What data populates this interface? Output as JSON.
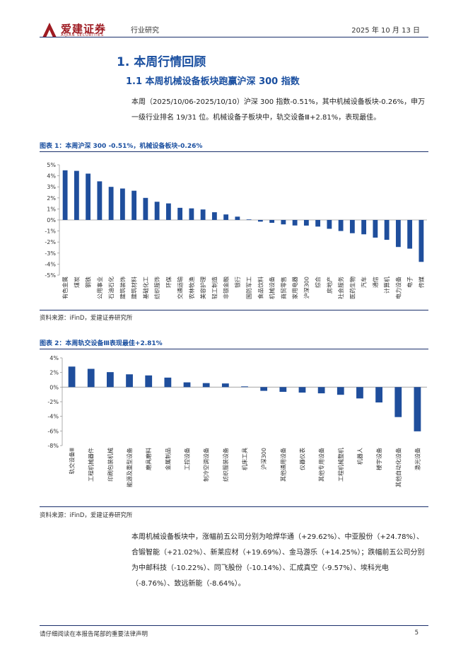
{
  "header": {
    "logo_cn": "爱建证券",
    "logo_en": "AIJIAN SECURITIES",
    "category": "行业研究",
    "date": "2025 年 10 月 13 日"
  },
  "section": {
    "h1": "1.  本周行情回顾",
    "h2": "1.1 本周机械设备板块跑赢沪深 300 指数"
  },
  "para1": "本周（2025/10/06-2025/10/10）沪深 300 指数-0.51%，其中机械设备板块-0.26%，申万一级行业排名 19/31 位。机械设备子板块中，轨交设备Ⅲ+2.81%，表现最佳。",
  "para2": "本周机械设备板块中，涨幅前五公司分别为哈焊华通（+29.62%）、中亚股份（+24.78%）、合锻智能（+21.02%）、新莱应材（+19.69%）、金马游乐（+14.25%）；跌幅前五公司分别为中邮科技（-10.22%）、同飞股份（-10.14%）、汇成真空（-9.57%）、埃科光电（-8.76%）、致远新能（-8.64%）。",
  "footer": {
    "disclaimer": "请仔细阅读在本报告尾部的重要法律声明",
    "page": "5"
  },
  "chart_data": [
    {
      "type": "bar",
      "fig_title": "图表 1：本周沪深 300 -0.51%，机械设备板块-0.26%",
      "source": "资料来源：iFinD，爱建证券研究所",
      "color": "#1f4e9c",
      "ylim": [
        -5,
        5
      ],
      "yticks": [
        5,
        4,
        3,
        2,
        1,
        0,
        -1,
        -2,
        -3,
        -4,
        -5
      ],
      "categories": [
        "有色金属",
        "煤炭",
        "钢铁",
        "公用事业",
        "石油石化",
        "建筑装饰",
        "建筑材料",
        "基础化工",
        "纺织服饰",
        "环保",
        "交通运输",
        "农林牧渔",
        "美容护理",
        "轻工制造",
        "非银金融",
        "银行",
        "国防军工",
        "食品饮料",
        "机械设备",
        "商贸零售",
        "家用电器",
        "沪深300",
        "综合",
        "房地产",
        "社会服务",
        "医药生物",
        "汽车",
        "通信",
        "计算机",
        "电力设备",
        "电子",
        "传媒"
      ],
      "values": [
        4.5,
        4.45,
        4.2,
        3.5,
        3.0,
        2.85,
        2.65,
        2.0,
        1.65,
        1.5,
        1.1,
        1.05,
        0.95,
        0.7,
        0.5,
        0.3,
        0.05,
        -0.15,
        -0.26,
        -0.4,
        -0.5,
        -0.51,
        -0.6,
        -0.8,
        -1.0,
        -1.2,
        -1.3,
        -1.6,
        -1.8,
        -2.45,
        -2.6,
        -3.8
      ]
    },
    {
      "type": "bar",
      "fig_title": "图表 2：本周轨交设备Ⅲ表现最佳+2.81%",
      "source": "资料来源：iFinD，爱建证券研究所",
      "color": "#1f4e9c",
      "ylim": [
        -8,
        4
      ],
      "yticks": [
        4,
        2,
        0,
        -2,
        -4,
        -6,
        -8
      ],
      "categories": [
        "轨交设备Ⅲ",
        "工程机械器件",
        "印刷包装机械",
        "能源及重型设备",
        "磨具磨料",
        "金属制品",
        "工控设备",
        "制冷空调设备",
        "纺织服装设备",
        "机床工具",
        "沪深300",
        "其他通用设备",
        "仪器仪表",
        "其他专用设备",
        "工程机械整机",
        "机器人",
        "楼宇设备",
        "其他自动化设备",
        "激光设备"
      ],
      "values": [
        2.81,
        2.5,
        2.05,
        1.75,
        1.6,
        1.3,
        0.65,
        0.55,
        0.5,
        0.1,
        -0.51,
        -0.65,
        -0.75,
        -0.85,
        -1.05,
        -1.55,
        -2.1,
        -4.1,
        -6.05
      ]
    }
  ]
}
